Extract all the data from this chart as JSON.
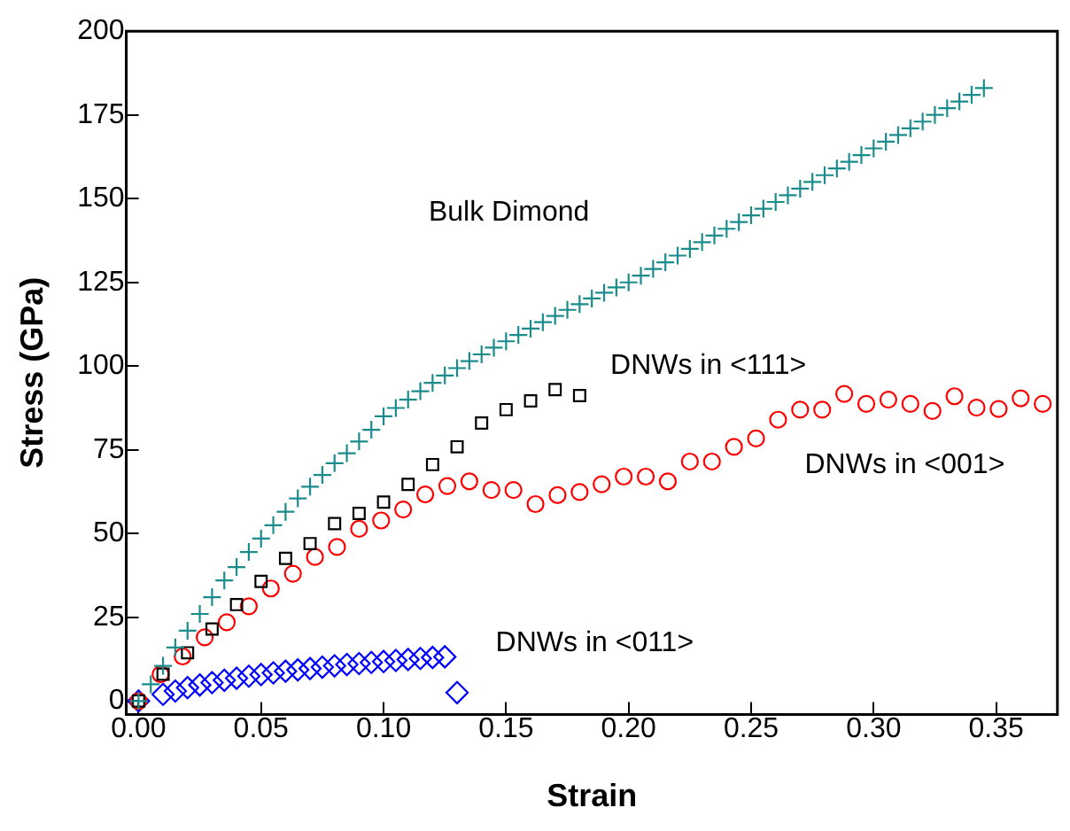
{
  "chart_data": {
    "type": "scatter",
    "xlabel": "Strain",
    "ylabel": "Stress (GPa)",
    "xlim": [
      -0.005,
      0.375
    ],
    "ylim": [
      -4,
      200
    ],
    "xticks": [
      {
        "value": 0,
        "label": "0.00"
      },
      {
        "value": 0.05,
        "label": "0.05"
      },
      {
        "value": 0.1,
        "label": "0.10"
      },
      {
        "value": 0.15,
        "label": "0.15"
      },
      {
        "value": 0.2,
        "label": "0.20"
      },
      {
        "value": 0.25,
        "label": "0.25"
      },
      {
        "value": 0.3,
        "label": "0.30"
      },
      {
        "value": 0.35,
        "label": "0.35"
      }
    ],
    "yticks": [
      0,
      25,
      50,
      75,
      100,
      125,
      150,
      175,
      200
    ],
    "grid": false,
    "legend": false,
    "series": [
      {
        "name": "Bulk Dimond",
        "color": "#1a8c8c",
        "marker": "cross",
        "x": [
          0,
          0.005,
          0.01,
          0.015,
          0.02,
          0.025,
          0.03,
          0.035,
          0.04,
          0.045,
          0.05,
          0.055,
          0.06,
          0.065,
          0.07,
          0.075,
          0.08,
          0.085,
          0.09,
          0.095,
          0.1,
          0.105,
          0.11,
          0.115,
          0.12,
          0.125,
          0.13,
          0.135,
          0.14,
          0.145,
          0.15,
          0.155,
          0.16,
          0.165,
          0.17,
          0.175,
          0.18,
          0.185,
          0.19,
          0.195,
          0.2,
          0.205,
          0.21,
          0.215,
          0.22,
          0.225,
          0.23,
          0.235,
          0.24,
          0.245,
          0.25,
          0.255,
          0.26,
          0.265,
          0.27,
          0.275,
          0.28,
          0.285,
          0.29,
          0.295,
          0.3,
          0.305,
          0.31,
          0.315,
          0.32,
          0.325,
          0.33,
          0.335,
          0.34,
          0.345
        ],
        "values": [
          0,
          5,
          10.5,
          16,
          21,
          26,
          31,
          36,
          40,
          44.5,
          48.5,
          52.5,
          56.5,
          60.5,
          64,
          67.5,
          71,
          74,
          77.5,
          81,
          85,
          87.5,
          90,
          92.5,
          95,
          97.2,
          99.4,
          101.5,
          103.5,
          105.5,
          107.4,
          109.3,
          111.2,
          113.1,
          115,
          116.8,
          118.5,
          120.2,
          121.9,
          123.5,
          125,
          127,
          129,
          131,
          133,
          135,
          137,
          139,
          141,
          143,
          145,
          147,
          149,
          151,
          153,
          155,
          157,
          159,
          161,
          163,
          165,
          167,
          169,
          171,
          173,
          175,
          177,
          179,
          181,
          183
        ]
      },
      {
        "name": "DNWs in <111>",
        "color": "#000000",
        "marker": "square",
        "x": [
          0,
          0.01,
          0.02,
          0.03,
          0.04,
          0.05,
          0.06,
          0.07,
          0.08,
          0.09,
          0.1,
          0.11,
          0.12,
          0.13,
          0.14,
          0.15,
          0.16,
          0.17,
          0.18
        ],
        "values": [
          0,
          8,
          14.4,
          21.5,
          28.8,
          35.7,
          42.6,
          47,
          53,
          56,
          59.4,
          64.7,
          70.6,
          75.9,
          83,
          87,
          89.6,
          93,
          91.2
        ]
      },
      {
        "name": "DNWs in <001>",
        "color": "#ff0000",
        "marker": "circle",
        "x": [
          0,
          0.009,
          0.018,
          0.027,
          0.036,
          0.045,
          0.054,
          0.063,
          0.072,
          0.081,
          0.09,
          0.099,
          0.108,
          0.117,
          0.126,
          0.135,
          0.144,
          0.153,
          0.162,
          0.171,
          0.18,
          0.189,
          0.198,
          0.207,
          0.216,
          0.225,
          0.234,
          0.243,
          0.252,
          0.261,
          0.27,
          0.279,
          0.288,
          0.297,
          0.306,
          0.315,
          0.324,
          0.333,
          0.342,
          0.351,
          0.36,
          0.369
        ],
        "values": [
          0,
          8,
          13.3,
          19,
          23.5,
          28.3,
          33.6,
          38,
          43,
          46,
          51.4,
          53.9,
          57.2,
          61.7,
          64.2,
          65.6,
          63,
          63,
          58.8,
          61.5,
          62.4,
          64.7,
          67,
          67,
          65.6,
          71.5,
          71.5,
          75.9,
          78.4,
          84,
          87,
          87,
          91.7,
          88.7,
          90,
          88.7,
          86.6,
          91,
          87.6,
          87.2,
          90.4,
          88.7
        ]
      },
      {
        "name": "DNWs in <011>",
        "color": "#0000ff",
        "marker": "diamond",
        "x": [
          0,
          0.01,
          0.015,
          0.02,
          0.025,
          0.03,
          0.035,
          0.04,
          0.045,
          0.05,
          0.055,
          0.06,
          0.065,
          0.07,
          0.075,
          0.08,
          0.085,
          0.09,
          0.095,
          0.1,
          0.105,
          0.11,
          0.115,
          0.12,
          0.125,
          0.13
        ],
        "values": [
          0,
          2,
          3,
          4,
          4.8,
          5.5,
          6.2,
          6.8,
          7.4,
          7.9,
          8.4,
          8.9,
          9.3,
          9.7,
          10.1,
          10.5,
          10.9,
          11.2,
          11.5,
          11.8,
          12.1,
          12.4,
          12.7,
          13,
          13.2,
          2.5
        ]
      }
    ]
  }
}
